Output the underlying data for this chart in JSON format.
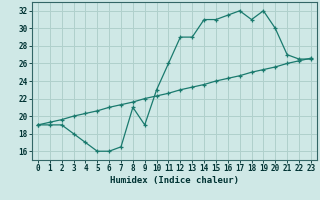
{
  "xlabel": "Humidex (Indice chaleur)",
  "background_color": "#cfe8e6",
  "grid_color": "#b0d0cc",
  "line_color": "#1a7a6e",
  "line1_x": [
    0,
    1,
    2,
    3,
    4,
    5,
    6,
    7,
    8,
    9,
    10,
    11,
    12,
    13,
    14,
    15,
    16,
    17,
    18,
    19,
    20,
    21,
    22,
    23
  ],
  "line1_y": [
    19,
    19,
    19,
    18,
    17,
    16,
    16,
    16.5,
    21,
    19,
    23,
    26,
    29,
    29,
    31,
    31,
    31.5,
    32,
    31,
    32,
    30,
    27,
    26.5,
    26.5
  ],
  "line2_x": [
    0,
    1,
    2,
    3,
    4,
    5,
    6,
    7,
    8,
    9,
    10,
    11,
    12,
    13,
    14,
    15,
    16,
    17,
    18,
    19,
    20,
    21,
    22,
    23
  ],
  "line2_y": [
    19.0,
    19.3,
    19.6,
    20.0,
    20.3,
    20.6,
    21.0,
    21.3,
    21.6,
    22.0,
    22.3,
    22.6,
    23.0,
    23.3,
    23.6,
    24.0,
    24.3,
    24.6,
    25.0,
    25.3,
    25.6,
    26.0,
    26.3,
    26.6
  ],
  "xlim": [
    -0.5,
    23.5
  ],
  "ylim": [
    15.0,
    33.0
  ],
  "yticks": [
    16,
    18,
    20,
    22,
    24,
    26,
    28,
    30,
    32
  ],
  "xticks": [
    0,
    1,
    2,
    3,
    4,
    5,
    6,
    7,
    8,
    9,
    10,
    11,
    12,
    13,
    14,
    15,
    16,
    17,
    18,
    19,
    20,
    21,
    22,
    23
  ],
  "tick_fontsize": 5.5,
  "label_fontsize": 6.5
}
